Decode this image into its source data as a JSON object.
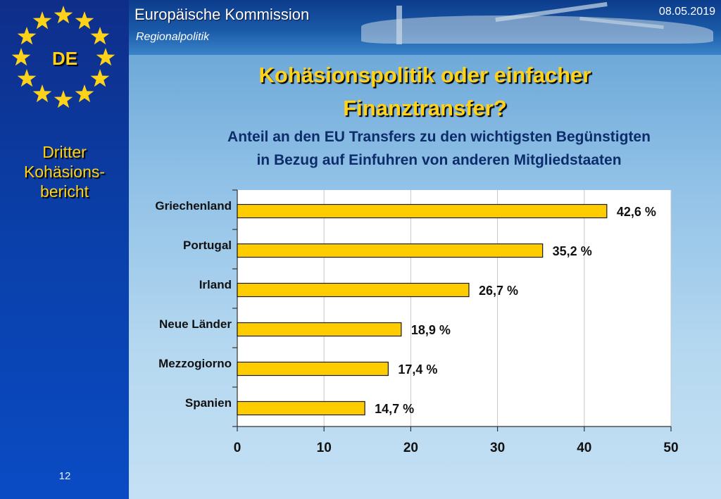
{
  "header": {
    "org_name": "Europäische Kommission",
    "department": "Regionalpolitik",
    "date": "08.05.2019"
  },
  "sidebar": {
    "country_code": "DE",
    "report_line1": "Dritter",
    "report_line2": "Kohäsions-",
    "report_line3": "bericht",
    "page_number": "12",
    "star_color": "#ffd21a"
  },
  "slide": {
    "title_line1": "Kohäsionspolitik oder einfacher",
    "title_line2": "Finanztransfer?",
    "subtitle_line1": "Anteil an den EU Transfers zu den wichtigsten Begünstigten",
    "subtitle_line2": "in Bezug auf Einfuhren von anderen Mitgliedstaaten"
  },
  "chart_data": {
    "type": "bar",
    "orientation": "horizontal",
    "categories": [
      "Griechenland",
      "Portugal",
      "Irland",
      "Neue Länder",
      "Mezzogiorno",
      "Spanien"
    ],
    "values": [
      42.6,
      35.2,
      26.7,
      18.9,
      17.4,
      14.7
    ],
    "data_labels": [
      "42,6 %",
      "35,2 %",
      "26,7 %",
      "18,9 %",
      "17,4 %",
      "14,7 %"
    ],
    "xlim": [
      0,
      50
    ],
    "xticks": [
      0,
      10,
      20,
      30,
      40,
      50
    ],
    "grid": true,
    "bar_color": "#ffcc00",
    "bar_edge_color": "#1a1a1a"
  }
}
